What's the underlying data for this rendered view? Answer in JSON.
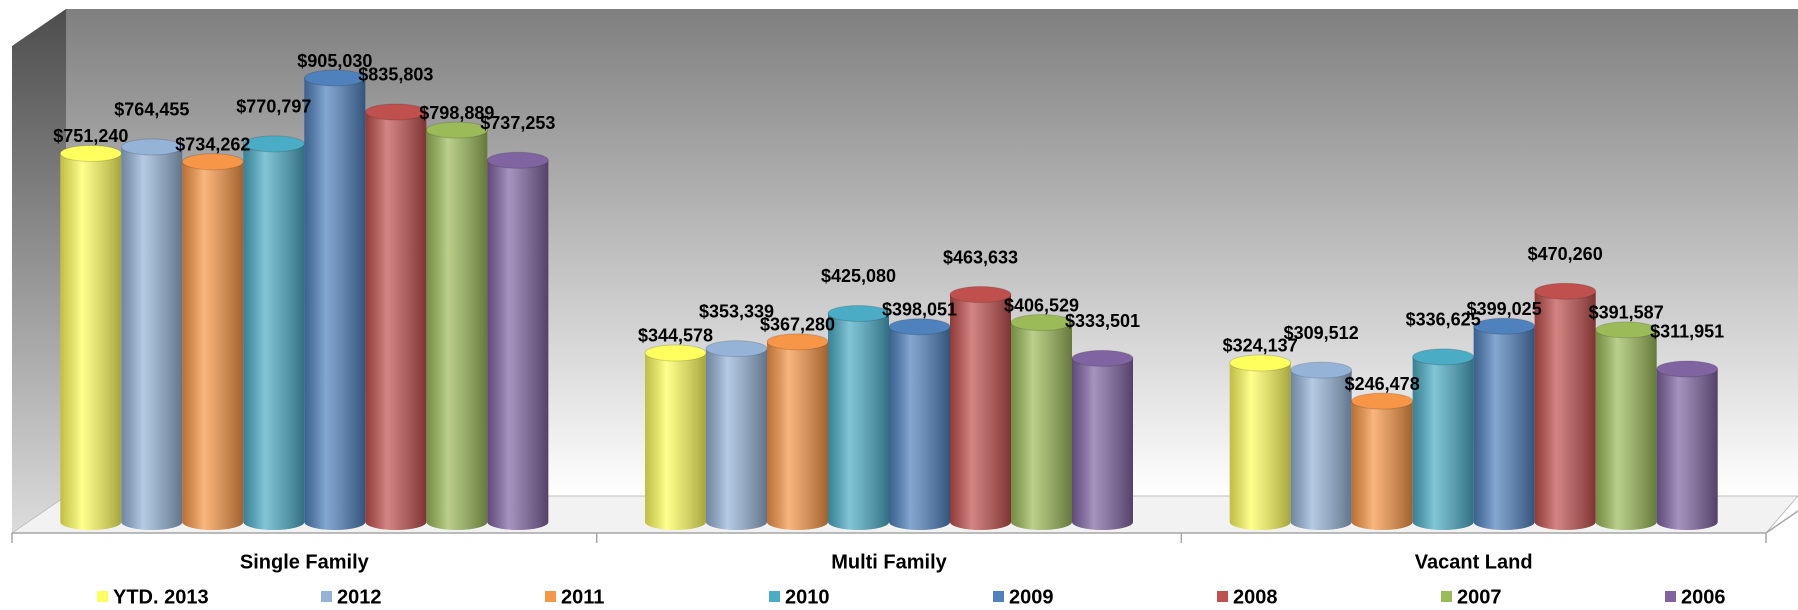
{
  "chart_data": {
    "type": "bar3d",
    "categories": [
      "Single Family",
      "Multi Family",
      "Vacant Land"
    ],
    "series": [
      {
        "name": "YTD. 2013",
        "color": "#ffff5e",
        "values": [
          751240,
          344578,
          324137
        ],
        "value_labels": [
          "$751,240",
          "$344,578",
          "$324,137"
        ]
      },
      {
        "name": "2012",
        "color": "#95b3d7",
        "values": [
          764455,
          353339,
          309512
        ],
        "value_labels": [
          "$764,455",
          "$353,339",
          "$309,512"
        ]
      },
      {
        "name": "2011",
        "color": "#f79646",
        "values": [
          734262,
          367280,
          246478
        ],
        "value_labels": [
          "$734,262",
          "$367,280",
          "$246,478"
        ]
      },
      {
        "name": "2010",
        "color": "#4bacc6",
        "values": [
          770797,
          425080,
          336625
        ],
        "value_labels": [
          "$770,797",
          "$425,080",
          "$336,625"
        ]
      },
      {
        "name": "2009",
        "color": "#4f81bd",
        "values": [
          905030,
          398051,
          399025
        ],
        "value_labels": [
          "$905,030",
          "$398,051",
          "$399,025"
        ]
      },
      {
        "name": "2008",
        "color": "#c0504d",
        "values": [
          835803,
          463633,
          470260
        ],
        "value_labels": [
          "$835,803",
          "$463,633",
          "$470,260"
        ]
      },
      {
        "name": "2007",
        "color": "#9bbb59",
        "values": [
          798889,
          406529,
          391587
        ],
        "value_labels": [
          "$798,889",
          "$406,529",
          "$391,587"
        ]
      },
      {
        "name": "2006",
        "color": "#8064a2",
        "values": [
          737253,
          333501,
          311951
        ],
        "value_labels": [
          "$737,253",
          "$333,501",
          "$311,951"
        ]
      }
    ]
  }
}
